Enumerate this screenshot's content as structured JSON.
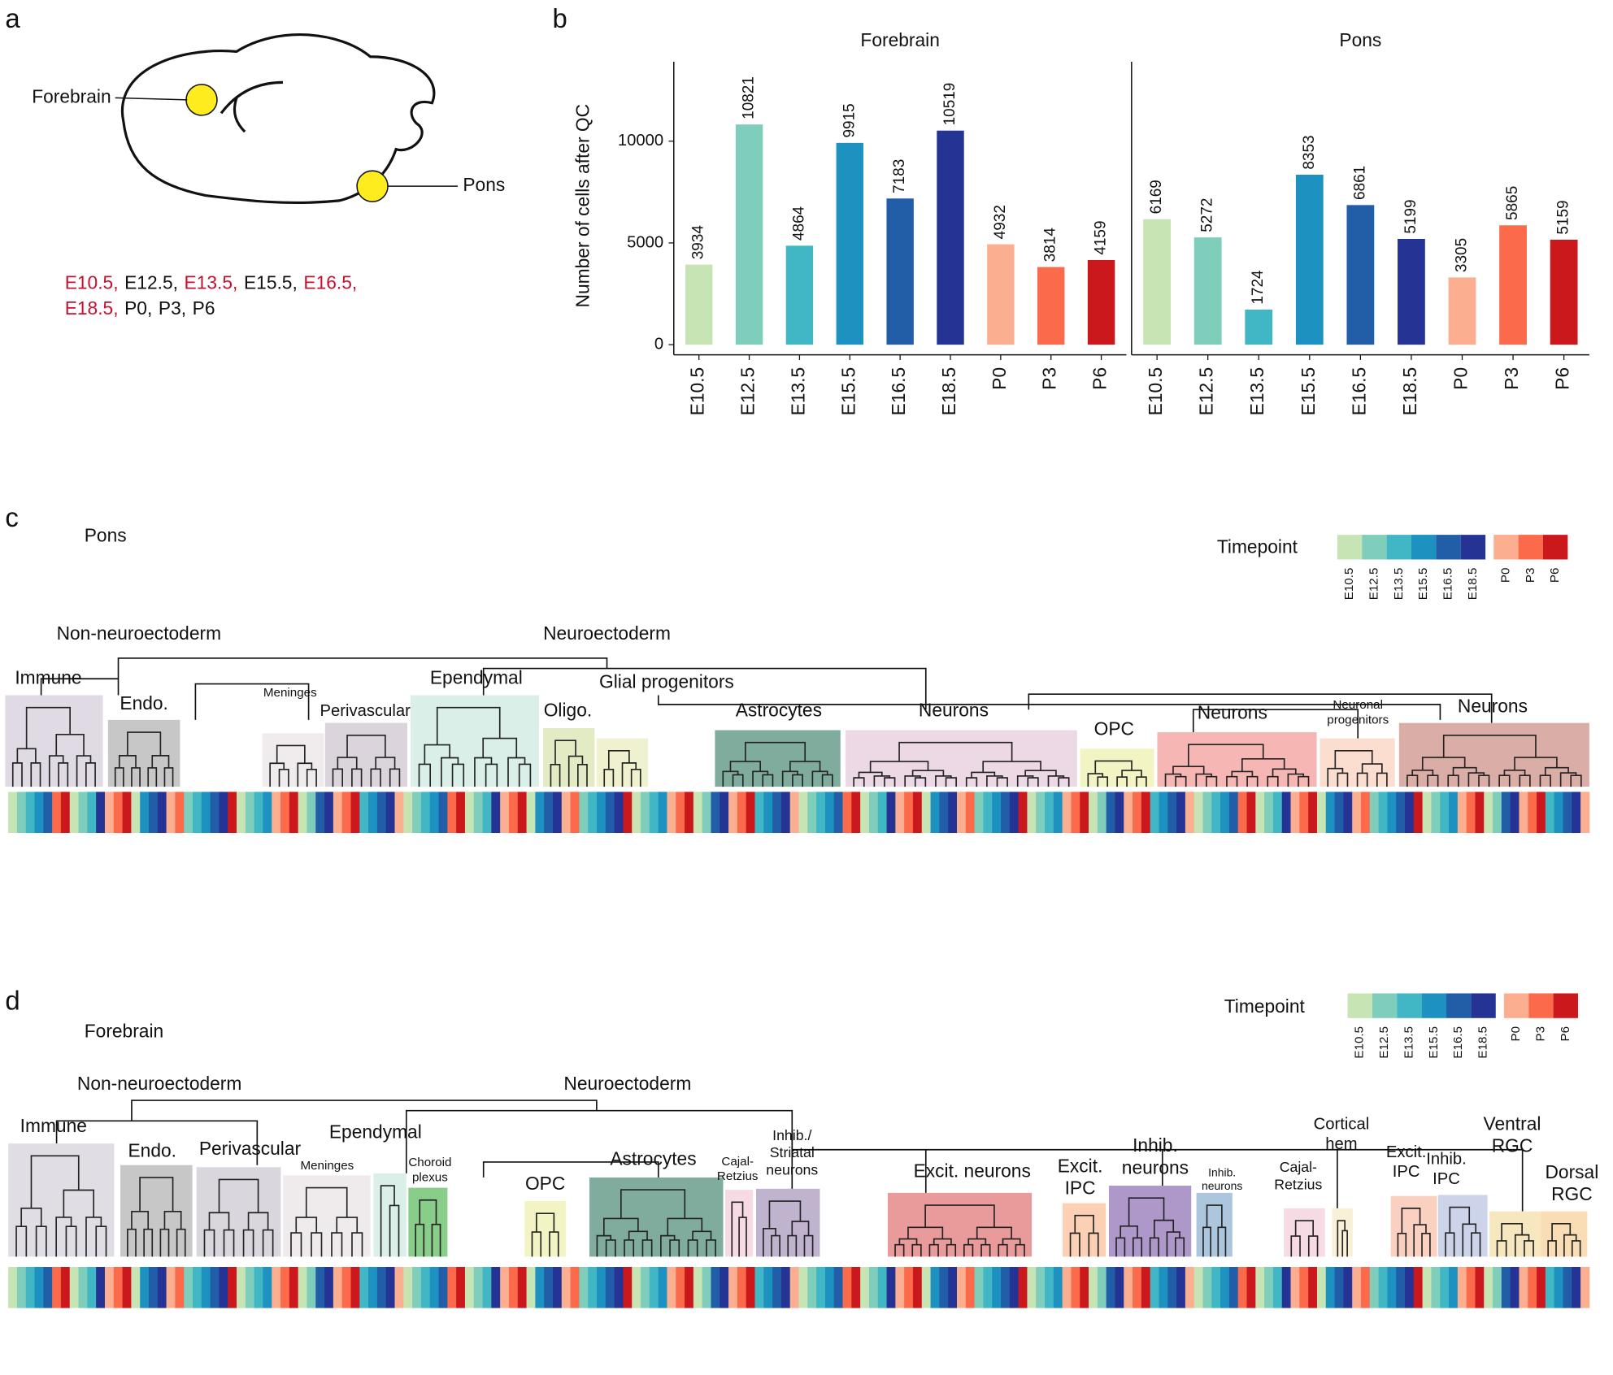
{
  "panel_a": {
    "letter": "a",
    "regions": [
      "Forebrain",
      "Pons"
    ],
    "timepoint_lines": [
      [
        {
          "text": "E10.5,",
          "color": "#c8102e"
        },
        {
          "text": "E12.5,",
          "color": "#111111"
        },
        {
          "text": "E13.5,",
          "color": "#c8102e"
        },
        {
          "text": "E15.5,",
          "color": "#111111"
        },
        {
          "text": "E16.5,",
          "color": "#c8102e"
        }
      ],
      [
        {
          "text": "E18.5,",
          "color": "#c8102e"
        },
        {
          "text": "P0,",
          "color": "#111111"
        },
        {
          "text": "P3,",
          "color": "#111111"
        },
        {
          "text": "P6",
          "color": "#111111"
        }
      ]
    ]
  },
  "panel_b": {
    "letter": "b"
  },
  "chart_data": [
    {
      "type": "bar",
      "title": "Forebrain",
      "ylabel": "Number of cells after QC",
      "categories": [
        "E10.5",
        "E12.5",
        "E13.5",
        "E15.5",
        "E16.5",
        "E18.5",
        "P0",
        "P3",
        "P6"
      ],
      "values": [
        3934,
        10821,
        4864,
        9915,
        7183,
        10519,
        4932,
        3814,
        4159
      ],
      "colors": [
        "#c7e5b4",
        "#7fcdbb",
        "#41b6c4",
        "#1d91c0",
        "#225ea8",
        "#253494",
        "#fcae91",
        "#fb6a4a",
        "#cb181d"
      ],
      "ylim": [
        -500,
        13900
      ],
      "yticks": [
        0,
        5000,
        10000
      ]
    },
    {
      "type": "bar",
      "title": "Pons",
      "categories": [
        "E10.5",
        "E12.5",
        "E13.5",
        "E15.5",
        "E16.5",
        "E18.5",
        "P0",
        "P3",
        "P6"
      ],
      "values": [
        6169,
        5272,
        1724,
        8353,
        6861,
        5199,
        3305,
        5865,
        5159
      ],
      "colors": [
        "#c7e5b4",
        "#7fcdbb",
        "#41b6c4",
        "#1d91c0",
        "#225ea8",
        "#253494",
        "#fcae91",
        "#fb6a4a",
        "#cb181d"
      ],
      "ylim": [
        -500,
        13900
      ]
    }
  ],
  "panel_c": {
    "letter": "c",
    "title": "Pons",
    "legend": {
      "title": "Timepoint",
      "labels": [
        "E10.5",
        "E12.5",
        "E13.5",
        "E15.5",
        "E16.5",
        "E18.5",
        "P0",
        "P3",
        "P6"
      ],
      "colors": [
        "#c7e5b4",
        "#7fcdbb",
        "#41b6c4",
        "#1d91c0",
        "#225ea8",
        "#253494",
        "#fcae91",
        "#fb6a4a",
        "#cb181d"
      ]
    },
    "groups": [
      {
        "lines": [
          "Non-neuroectoderm"
        ]
      },
      {
        "lines": [
          "Neuroectoderm"
        ]
      },
      {
        "lines": [
          "Immune"
        ]
      },
      {
        "lines": [
          "Endo."
        ]
      },
      {
        "lines": [
          "Meninges"
        ]
      },
      {
        "lines": [
          "Perivascular"
        ]
      },
      {
        "lines": [
          "Ependymal"
        ]
      },
      {
        "lines": [
          "Glial progenitors"
        ]
      },
      {
        "lines": [
          "Oligo."
        ]
      },
      {
        "lines": [
          "Astrocytes"
        ]
      },
      {
        "lines": [
          "Neurons"
        ]
      },
      {
        "lines": [
          "OPC"
        ]
      },
      {
        "lines": [
          "Neurons"
        ]
      },
      {
        "lines": [
          "Neuronal",
          "progenitors"
        ]
      },
      {
        "lines": [
          "Neurons"
        ]
      }
    ]
  },
  "panel_d": {
    "letter": "d",
    "title": "Forebrain",
    "legend": {
      "title": "Timepoint",
      "labels": [
        "E10.5",
        "E12.5",
        "E13.5",
        "E15.5",
        "E16.5",
        "E18.5",
        "P0",
        "P3",
        "P6"
      ],
      "colors": [
        "#c7e5b4",
        "#7fcdbb",
        "#41b6c4",
        "#1d91c0",
        "#225ea8",
        "#253494",
        "#fcae91",
        "#fb6a4a",
        "#cb181d"
      ]
    },
    "groups": [
      {
        "lines": [
          "Non-neuroectoderm"
        ]
      },
      {
        "lines": [
          "Neuroectoderm"
        ]
      },
      {
        "lines": [
          "Immune"
        ]
      },
      {
        "lines": [
          "Endo."
        ]
      },
      {
        "lines": [
          "Perivascular"
        ]
      },
      {
        "lines": [
          "Meninges"
        ]
      },
      {
        "lines": [
          "Ependymal"
        ]
      },
      {
        "lines": [
          "Choroid",
          "plexus"
        ]
      },
      {
        "lines": [
          "OPC"
        ]
      },
      {
        "lines": [
          "Astrocytes"
        ]
      },
      {
        "lines": [
          "Cajal-",
          "Retzius"
        ]
      },
      {
        "lines": [
          "Inhib./",
          "Striatal",
          "neurons"
        ]
      },
      {
        "lines": [
          "Excit. neurons"
        ]
      },
      {
        "lines": [
          "Excit.",
          "IPC"
        ]
      },
      {
        "lines": [
          "Inhib.",
          "neurons"
        ]
      },
      {
        "lines": [
          "Inhib.",
          "neurons"
        ]
      },
      {
        "lines": [
          "Cajal-",
          "Retzius"
        ]
      },
      {
        "lines": [
          "Cortical",
          "hem"
        ]
      },
      {
        "lines": [
          "Excit.",
          "IPC"
        ]
      },
      {
        "lines": [
          "Inhib.",
          "IPC"
        ]
      },
      {
        "lines": [
          "Ventral",
          "RGC"
        ]
      },
      {
        "lines": [
          "Dorsal",
          "RGC"
        ]
      }
    ]
  }
}
